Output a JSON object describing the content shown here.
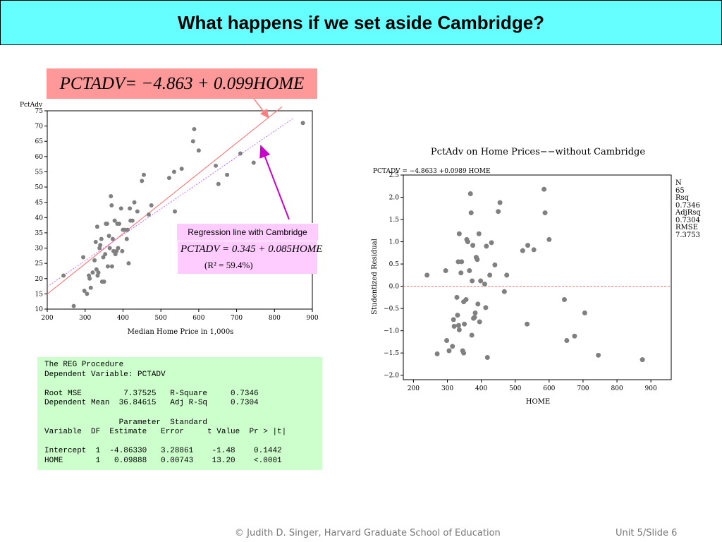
{
  "slide": {
    "title": "What happens if we set aside Cambridge?",
    "footer_left": "© Judith D. Singer, Harvard Graduate School of Education",
    "footer_right": "Unit 5/Slide 6"
  },
  "equation_top": {
    "lhs": "PCTADV",
    "rhs": " = −4.863 + 0.099HOME",
    "color": "#ff9999"
  },
  "with_cambridge": {
    "label": "Regression line with Cambridge",
    "equation_lhs": "PCTADV",
    "equation_rhs": " = 0.345 + 0.085HOME",
    "r2": "(R² = 59.4%)",
    "color": "#ffccff"
  },
  "reg_output": {
    "text": "The REG Procedure\nDependent Variable: PCTADV\n\nRoot MSE         7.37525   R-Square     0.7346\nDependent Mean  36.84615   Adj R-Sq     0.7304\n\n                Parameter  Standard\nVariable  DF  Estimate   Error     t Value  Pr > |t|\n\nIntercept  1  -4.86330   3.28861    -1.48    0.1442\nHOME       1   0.09888   0.00743    13.20    <.0001",
    "color": "#ccffcc"
  },
  "chart_data": [
    {
      "type": "scatter",
      "title": "",
      "xlabel": "Median Home Price in 1,000s",
      "ylabel": "PctAdv",
      "xlim": [
        200,
        900
      ],
      "ylim": [
        10,
        75
      ],
      "xticks": [
        "200",
        "300",
        "400",
        "500",
        "600",
        "700",
        "800",
        "900"
      ],
      "yticks": [
        "10",
        "15",
        "20",
        "25",
        "30",
        "35",
        "40",
        "45",
        "50",
        "55",
        "60",
        "65",
        "70",
        "75"
      ],
      "points": [
        [
          243,
          21
        ],
        [
          270,
          11
        ],
        [
          295,
          27
        ],
        [
          298,
          16
        ],
        [
          305,
          15
        ],
        [
          310,
          21
        ],
        [
          312,
          20
        ],
        [
          315,
          17
        ],
        [
          320,
          22
        ],
        [
          325,
          26
        ],
        [
          328,
          32
        ],
        [
          330,
          23
        ],
        [
          332,
          37
        ],
        [
          333,
          21
        ],
        [
          335,
          22
        ],
        [
          338,
          30
        ],
        [
          340,
          31
        ],
        [
          343,
          33
        ],
        [
          345,
          19
        ],
        [
          348,
          27
        ],
        [
          350,
          19
        ],
        [
          353,
          28
        ],
        [
          355,
          38
        ],
        [
          358,
          38
        ],
        [
          360,
          24
        ],
        [
          363,
          34
        ],
        [
          365,
          30
        ],
        [
          368,
          47
        ],
        [
          370,
          44
        ],
        [
          371,
          24
        ],
        [
          373,
          33
        ],
        [
          375,
          29
        ],
        [
          378,
          39
        ],
        [
          380,
          28
        ],
        [
          383,
          29
        ],
        [
          385,
          38
        ],
        [
          387,
          30
        ],
        [
          390,
          38
        ],
        [
          395,
          43
        ],
        [
          398,
          29
        ],
        [
          400,
          36
        ],
        [
          405,
          36
        ],
        [
          410,
          33
        ],
        [
          412,
          36
        ],
        [
          415,
          25
        ],
        [
          418,
          43
        ],
        [
          420,
          39
        ],
        [
          425,
          39
        ],
        [
          430,
          45
        ],
        [
          438,
          42
        ],
        [
          450,
          52
        ],
        [
          455,
          54
        ],
        [
          468,
          41
        ],
        [
          475,
          44
        ],
        [
          522,
          53
        ],
        [
          535,
          55
        ],
        [
          537,
          42
        ],
        [
          555,
          56
        ],
        [
          585,
          65
        ],
        [
          588,
          69
        ],
        [
          600,
          62
        ],
        [
          645,
          57
        ],
        [
          652,
          51
        ],
        [
          675,
          54
        ],
        [
          710,
          61
        ],
        [
          745,
          58
        ],
        [
          875,
          71
        ]
      ],
      "lines": [
        {
          "name": "fit without Cambridge",
          "intercept": -4.863,
          "slope": 0.099,
          "color": "#ff6666",
          "dash": false,
          "x_range": [
            200,
            820
          ]
        },
        {
          "name": "fit with Cambridge",
          "intercept": 0.345,
          "slope": 0.085,
          "color": "#cc66ff",
          "dash": true,
          "x_range": [
            200,
            850
          ]
        }
      ]
    },
    {
      "type": "scatter",
      "title": "PctAdv on Home Prices−−without Cambridge",
      "subtitle": "PCTADV = −4.8633 +0.0989 HOME",
      "xlabel": "HOME",
      "ylabel": "Studentized Residual",
      "xlim": [
        170,
        960
      ],
      "ylim": [
        -2.1,
        2.5
      ],
      "xticks": [
        "200",
        "300",
        "400",
        "500",
        "600",
        "700",
        "800",
        "900"
      ],
      "yticks": [
        "−2.0",
        "−1.5",
        "−1.0",
        "−0.5",
        "0.0",
        "0.5",
        "1.0",
        "1.5",
        "2.0",
        "2.5"
      ],
      "yticks_values": [
        -2.0,
        -1.5,
        -1.0,
        -0.5,
        0.0,
        0.5,
        1.0,
        1.5,
        2.0,
        2.5
      ],
      "points": [
        [
          240,
          0.25
        ],
        [
          270,
          -1.52
        ],
        [
          295,
          0.35
        ],
        [
          298,
          -1.22
        ],
        [
          305,
          -1.45
        ],
        [
          315,
          -1.35
        ],
        [
          318,
          -0.75
        ],
        [
          320,
          -0.9
        ],
        [
          328,
          -0.25
        ],
        [
          330,
          -0.65
        ],
        [
          332,
          0.55
        ],
        [
          333,
          -0.88
        ],
        [
          335,
          -0.98
        ],
        [
          335,
          1.18
        ],
        [
          340,
          0.3
        ],
        [
          342,
          0.55
        ],
        [
          345,
          -1.45
        ],
        [
          348,
          -0.35
        ],
        [
          348,
          -1.5
        ],
        [
          350,
          -0.85
        ],
        [
          355,
          -0.3
        ],
        [
          357,
          1.05
        ],
        [
          360,
          1.0
        ],
        [
          365,
          0.35
        ],
        [
          368,
          2.08
        ],
        [
          370,
          1.65
        ],
        [
          372,
          -1.1
        ],
        [
          373,
          0.12
        ],
        [
          375,
          0.92
        ],
        [
          377,
          -0.72
        ],
        [
          380,
          -0.7
        ],
        [
          382,
          -0.6
        ],
        [
          385,
          0.65
        ],
        [
          388,
          0.6
        ],
        [
          390,
          -0.4
        ],
        [
          393,
          1.18
        ],
        [
          395,
          -0.8
        ],
        [
          398,
          0.12
        ],
        [
          410,
          0.05
        ],
        [
          413,
          -0.48
        ],
        [
          415,
          0.9
        ],
        [
          418,
          -1.6
        ],
        [
          425,
          0.25
        ],
        [
          430,
          0.98
        ],
        [
          440,
          0.48
        ],
        [
          450,
          1.68
        ],
        [
          455,
          1.88
        ],
        [
          468,
          -0.12
        ],
        [
          475,
          0.25
        ],
        [
          522,
          0.8
        ],
        [
          535,
          -0.85
        ],
        [
          537,
          0.92
        ],
        [
          555,
          0.82
        ],
        [
          585,
          2.18
        ],
        [
          588,
          1.65
        ],
        [
          600,
          1.05
        ],
        [
          645,
          -0.3
        ],
        [
          652,
          -1.22
        ],
        [
          675,
          -1.12
        ],
        [
          705,
          -0.6
        ],
        [
          745,
          -1.55
        ],
        [
          875,
          -1.65
        ]
      ],
      "stats": {
        "n_label": "N",
        "n": "65",
        "rsq_label": "Rsq",
        "rsq": "0.7346",
        "adjrsq_label": "AdjRsq",
        "adjrsq": "0.7304",
        "rmse_label": "RMSE",
        "rmse": "7.3753"
      }
    }
  ],
  "colors": {
    "title_bg": "#66ffff",
    "point": "#808080",
    "arrow_top": "#ff8080",
    "arrow_with": "#cc00cc",
    "zero_ref": "#ff6666"
  }
}
